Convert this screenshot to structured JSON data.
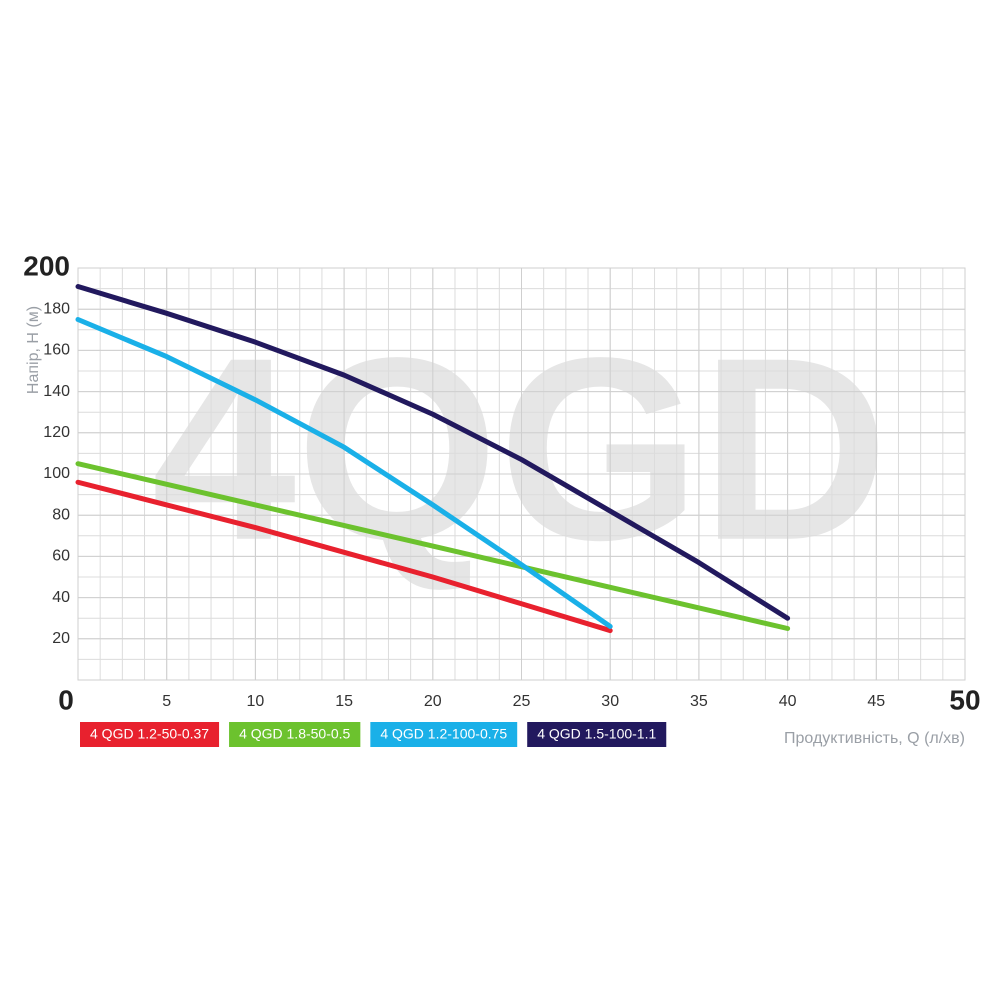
{
  "chart_data": {
    "type": "line",
    "watermark": "4QGD",
    "x_label": "Продуктивність, Q (л/хв)",
    "y_label": "Напір, Н (м)",
    "xlim": [
      0,
      50
    ],
    "xticks": [
      0,
      5,
      10,
      15,
      20,
      25,
      30,
      35,
      40,
      45,
      50
    ],
    "ylim": [
      0,
      200
    ],
    "yticks": [
      0,
      20,
      40,
      60,
      80,
      100,
      120,
      140,
      160,
      180,
      200
    ],
    "grid": true,
    "series": [
      {
        "name": "4 QGD 1.2-50-0.37",
        "color": "#e8212e",
        "x": [
          0,
          5,
          10,
          15,
          20,
          25,
          30
        ],
        "values": [
          96,
          85,
          74,
          62,
          50,
          37,
          24
        ]
      },
      {
        "name": "4 QGD 1.8-50-0.5",
        "color": "#6cc22e",
        "x": [
          0,
          10,
          20,
          30,
          40
        ],
        "values": [
          105,
          85,
          65,
          45,
          25
        ]
      },
      {
        "name": "4 QGD 1.2-100-0.75",
        "color": "#1ab0e8",
        "x": [
          0,
          5,
          10,
          15,
          20,
          25,
          30
        ],
        "values": [
          175,
          157,
          136,
          113,
          85,
          56,
          26
        ]
      },
      {
        "name": "4 QGD 1.5-100-1.1",
        "color": "#22195e",
        "x": [
          0,
          5,
          10,
          15,
          20,
          25,
          30,
          35,
          40
        ],
        "values": [
          191,
          178,
          164,
          148,
          129,
          107,
          82,
          57,
          30
        ]
      }
    ]
  }
}
